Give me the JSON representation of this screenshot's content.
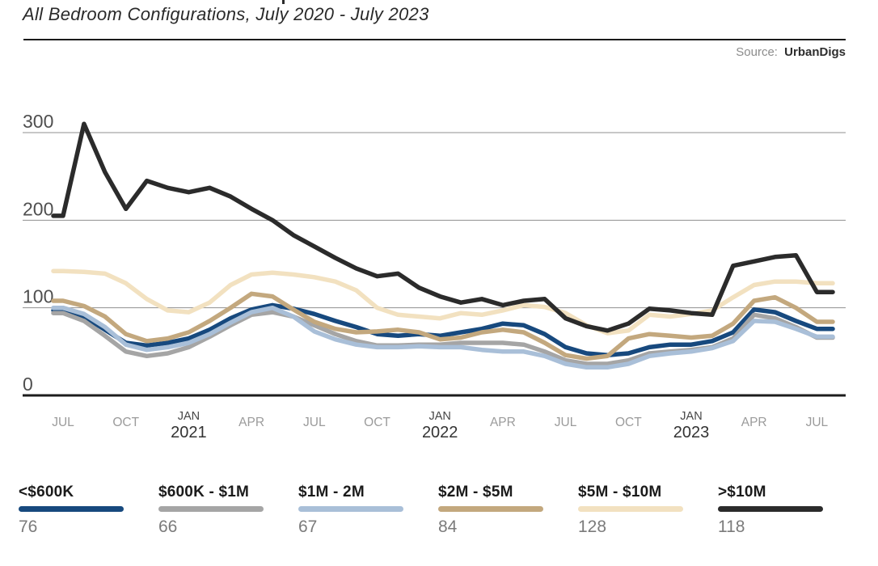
{
  "header": {
    "title": "All Bedroom Configurations, July 2020 - July 2023",
    "source_label": "Source:",
    "source_value": "UrbanDigs"
  },
  "chart_data": {
    "type": "line",
    "title": "All Bedroom Configurations, July 2020 - July 2023",
    "xlabel": "",
    "ylabel": "",
    "ylim": [
      0,
      320
    ],
    "y_ticks": [
      0,
      100,
      200,
      300
    ],
    "grid": "horizontal",
    "legend_position": "bottom",
    "x_ticks": [
      {
        "label": "JUL",
        "month_index": 0
      },
      {
        "label": "OCT",
        "month_index": 3
      },
      {
        "label": "JAN",
        "year": "2021",
        "month_index": 6
      },
      {
        "label": "APR",
        "month_index": 9
      },
      {
        "label": "JUL",
        "month_index": 12
      },
      {
        "label": "OCT",
        "month_index": 15
      },
      {
        "label": "JAN",
        "year": "2022",
        "month_index": 18
      },
      {
        "label": "APR",
        "month_index": 21
      },
      {
        "label": "JUL",
        "month_index": 24
      },
      {
        "label": "OCT",
        "month_index": 27
      },
      {
        "label": "JAN",
        "year": "2023",
        "month_index": 30
      },
      {
        "label": "APR",
        "month_index": 33
      },
      {
        "label": "JUL",
        "month_index": 36
      }
    ],
    "categories": [
      "Jul 2020",
      "Aug 2020",
      "Sep 2020",
      "Oct 2020",
      "Nov 2020",
      "Dec 2020",
      "Jan 2021",
      "Feb 2021",
      "Mar 2021",
      "Apr 2021",
      "May 2021",
      "Jun 2021",
      "Jul 2021",
      "Aug 2021",
      "Sep 2021",
      "Oct 2021",
      "Nov 2021",
      "Dec 2021",
      "Jan 2022",
      "Feb 2022",
      "Mar 2022",
      "Apr 2022",
      "May 2022",
      "Jun 2022",
      "Jul 2022",
      "Aug 2022",
      "Sep 2022",
      "Oct 2022",
      "Nov 2022",
      "Dec 2022",
      "Jan 2023",
      "Feb 2023",
      "Mar 2023",
      "Apr 2023",
      "May 2023",
      "Jun 2023",
      "Jul 2023"
    ],
    "series": [
      {
        "name": "<$600K",
        "color": "#17497E",
        "last_value": 76,
        "values": [
          97,
          90,
          75,
          60,
          57,
          60,
          65,
          75,
          88,
          98,
          103,
          99,
          93,
          85,
          78,
          70,
          68,
          70,
          68,
          72,
          76,
          82,
          80,
          70,
          55,
          48,
          46,
          48,
          55,
          58,
          58,
          62,
          72,
          98,
          95,
          85,
          76
        ]
      },
      {
        "name": "$600K - $1M",
        "color": "#A5A5A5",
        "last_value": 66,
        "values": [
          94,
          85,
          68,
          50,
          45,
          48,
          55,
          67,
          80,
          92,
          95,
          90,
          80,
          70,
          62,
          57,
          57,
          58,
          58,
          60,
          60,
          60,
          58,
          50,
          40,
          36,
          36,
          40,
          48,
          50,
          52,
          55,
          65,
          92,
          88,
          78,
          66
        ]
      },
      {
        "name": "$1M - 2M",
        "color": "#A9BFD8",
        "last_value": 67,
        "values": [
          100,
          93,
          78,
          58,
          52,
          55,
          60,
          70,
          83,
          95,
          100,
          90,
          73,
          64,
          58,
          55,
          55,
          56,
          55,
          55,
          52,
          50,
          50,
          45,
          36,
          32,
          32,
          36,
          45,
          48,
          50,
          54,
          62,
          85,
          84,
          76,
          67
        ]
      },
      {
        "name": "$2M - $5M",
        "color": "#C3A87E",
        "last_value": 84,
        "values": [
          108,
          102,
          90,
          70,
          62,
          65,
          72,
          85,
          100,
          116,
          113,
          98,
          84,
          76,
          72,
          73,
          75,
          72,
          64,
          66,
          72,
          75,
          72,
          60,
          46,
          42,
          45,
          65,
          70,
          68,
          66,
          68,
          82,
          108,
          112,
          100,
          84
        ]
      },
      {
        "name": "$5M - $10M",
        "color": "#F2E1C0",
        "last_value": 128,
        "values": [
          142,
          141,
          139,
          128,
          110,
          97,
          95,
          106,
          126,
          138,
          140,
          138,
          135,
          130,
          120,
          100,
          92,
          90,
          88,
          94,
          92,
          97,
          103,
          101,
          94,
          80,
          71,
          74,
          92,
          90,
          93,
          97,
          112,
          126,
          130,
          130,
          128
        ]
      },
      {
        "name": ">$10M",
        "color": "#2B2B2B",
        "last_value": 118,
        "values": [
          205,
          310,
          255,
          213,
          245,
          237,
          232,
          237,
          227,
          213,
          200,
          183,
          170,
          157,
          145,
          136,
          139,
          123,
          113,
          106,
          110,
          103,
          108,
          110,
          88,
          79,
          74,
          82,
          99,
          97,
          94,
          92,
          148,
          153,
          158,
          160,
          118
        ]
      }
    ]
  },
  "legend": {
    "items": [
      {
        "label": "<$600K",
        "value": "76",
        "color": "#17497E"
      },
      {
        "label": "$600K - $1M",
        "value": "66",
        "color": "#A5A5A5"
      },
      {
        "label": "$1M - 2M",
        "value": "67",
        "color": "#A9BFD8"
      },
      {
        "label": "$2M - $5M",
        "value": "84",
        "color": "#C3A87E"
      },
      {
        "label": "$5M - $10M",
        "value": "128",
        "color": "#F2E1C0"
      },
      {
        "label": ">$10M",
        "value": "118",
        "color": "#2B2B2B"
      }
    ]
  }
}
